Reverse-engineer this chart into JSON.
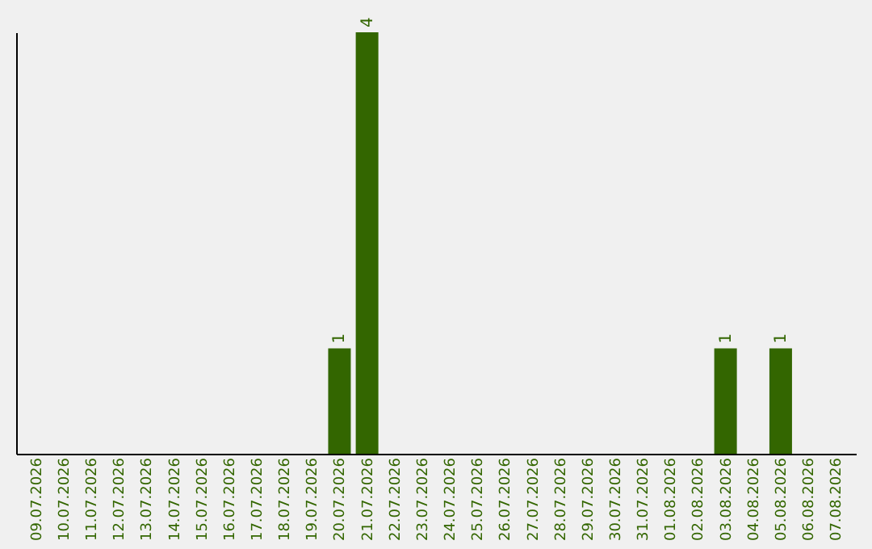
{
  "chart_data": {
    "type": "bar",
    "categories": [
      "09.07.2026",
      "10.07.2026",
      "11.07.2026",
      "12.07.2026",
      "13.07.2026",
      "14.07.2026",
      "15.07.2026",
      "16.07.2026",
      "17.07.2026",
      "18.07.2026",
      "19.07.2026",
      "20.07.2026",
      "21.07.2026",
      "22.07.2026",
      "23.07.2026",
      "24.07.2026",
      "25.07.2026",
      "26.07.2026",
      "27.07.2026",
      "28.07.2026",
      "29.07.2026",
      "30.07.2026",
      "31.07.2026",
      "01.08.2026",
      "02.08.2026",
      "03.08.2026",
      "04.08.2026",
      "05.08.2026",
      "06.08.2026",
      "07.08.2026"
    ],
    "values": [
      0,
      0,
      0,
      0,
      0,
      0,
      0,
      0,
      0,
      0,
      0,
      1,
      4,
      0,
      0,
      0,
      0,
      0,
      0,
      0,
      0,
      0,
      0,
      0,
      0,
      1,
      0,
      1,
      0,
      0
    ],
    "value_labels": [
      null,
      null,
      null,
      null,
      null,
      null,
      null,
      null,
      null,
      null,
      null,
      "1",
      "4",
      null,
      null,
      null,
      null,
      null,
      null,
      null,
      null,
      null,
      null,
      null,
      null,
      "1",
      null,
      "1",
      null,
      null
    ],
    "color": "#336600",
    "grid": false
  }
}
